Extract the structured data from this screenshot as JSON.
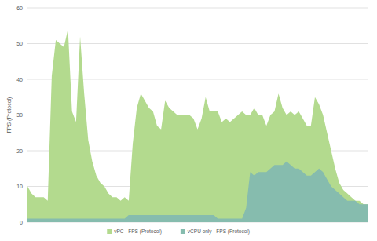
{
  "chart_data": {
    "type": "area",
    "ylabel": "FPS (Protocol)",
    "categories": [
      null,
      null,
      null,
      null,
      null,
      null,
      null,
      null,
      null,
      null,
      null,
      null,
      null,
      null,
      null,
      null,
      null,
      null,
      null,
      null,
      null,
      null,
      null,
      null,
      null,
      null,
      null,
      null,
      null,
      null,
      null,
      null,
      null,
      null,
      null,
      null,
      null,
      null,
      null,
      null,
      null,
      null,
      null,
      null,
      null,
      null,
      null,
      null,
      null,
      null,
      null,
      null,
      null,
      null,
      null,
      null,
      null,
      null,
      null,
      null,
      null,
      null,
      null,
      null,
      null,
      null,
      null,
      null,
      null,
      null,
      null,
      null,
      null,
      null,
      null,
      null,
      null,
      null,
      null,
      null,
      null,
      null,
      null,
      null,
      null
    ],
    "series": [
      {
        "name": "vPC - FPS (Protocol)",
        "color": "#b3da8e",
        "values": [
          10,
          8,
          7,
          7,
          7,
          6,
          41,
          51,
          50,
          49,
          54,
          31,
          28,
          52,
          36,
          23,
          17,
          13,
          11,
          10,
          8,
          7,
          7,
          6,
          7,
          6,
          22,
          32,
          36,
          34,
          32,
          31,
          27,
          26,
          34,
          32,
          31,
          30,
          30,
          30,
          30,
          29,
          26,
          29,
          35,
          31,
          31,
          31,
          28,
          29,
          28,
          29,
          30,
          31,
          30,
          30,
          32,
          30,
          30,
          27,
          30,
          31,
          36,
          32,
          30,
          31,
          30,
          31,
          29,
          27,
          27,
          35,
          33,
          30,
          25,
          20,
          15,
          11,
          9,
          8,
          7,
          6,
          6,
          5,
          5
        ]
      },
      {
        "name": "vCPU only - FPS (Protocol)",
        "color": "#86bcae",
        "values": [
          1,
          1,
          1,
          1,
          1,
          1,
          1,
          1,
          1,
          1,
          1,
          1,
          1,
          1,
          1,
          1,
          1,
          1,
          1,
          1,
          1,
          1,
          1,
          1,
          1,
          2,
          2,
          2,
          2,
          2,
          2,
          2,
          2,
          2,
          2,
          2,
          2,
          2,
          2,
          2,
          2,
          2,
          2,
          2,
          2,
          2,
          2,
          1,
          1,
          1,
          1,
          1,
          1,
          1,
          4,
          14,
          13,
          14,
          14,
          14,
          15,
          16,
          16,
          16,
          17,
          16,
          15,
          15,
          14,
          13,
          13,
          14,
          15,
          14,
          12,
          10,
          9,
          8,
          7,
          6,
          6,
          6,
          5,
          5,
          5
        ]
      }
    ],
    "ylim": [
      0,
      60
    ],
    "yticks": [
      0,
      10,
      20,
      30,
      40,
      50,
      60
    ],
    "grid": true,
    "stacked": false,
    "legend": "bottom",
    "tick_labels": "y"
  }
}
